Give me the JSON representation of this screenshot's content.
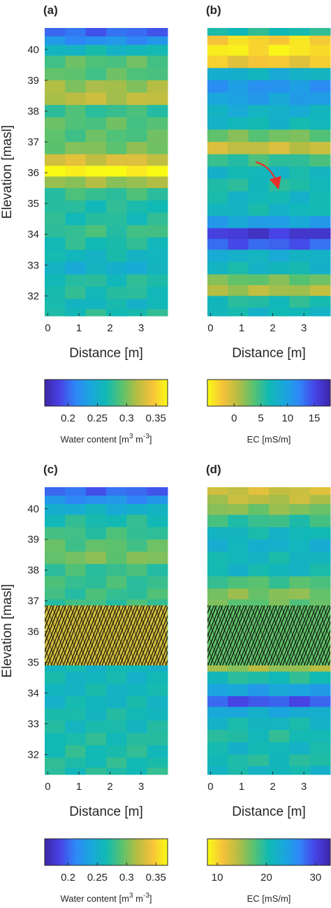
{
  "chart_data": [
    {
      "type": "heatmap",
      "panel_label": "(a)",
      "xlabel": "Distance [m]",
      "ylabel": "Elevation [masl]",
      "x_ticks": [
        "0",
        "1",
        "2",
        "3"
      ],
      "y_ticks": [
        "32",
        "33",
        "34",
        "35",
        "36",
        "37",
        "38",
        "39",
        "40"
      ],
      "xlim": [
        -0.1,
        3.85
      ],
      "ylim": [
        31.35,
        40.7
      ],
      "colormap": "parula",
      "colorbar": {
        "label_main": "Water content [m",
        "label_sup1": "3",
        "label_mid": " m",
        "label_sup2": "-3",
        "label_end": "]",
        "ticks": [
          "0.2",
          "0.25",
          "0.3",
          "0.35"
        ],
        "range": [
          0.16,
          0.37
        ],
        "reversed": false
      },
      "layers": [
        {
          "elev": 40.55,
          "value": 0.2
        },
        {
          "elev": 40.3,
          "value": 0.22
        },
        {
          "elev": 40.0,
          "value": 0.26
        },
        {
          "elev": 39.6,
          "value": 0.29
        },
        {
          "elev": 39.2,
          "value": 0.29
        },
        {
          "elev": 38.8,
          "value": 0.31
        },
        {
          "elev": 38.4,
          "value": 0.32
        },
        {
          "elev": 38.0,
          "value": 0.28
        },
        {
          "elev": 37.6,
          "value": 0.29
        },
        {
          "elev": 37.2,
          "value": 0.29
        },
        {
          "elev": 36.8,
          "value": 0.3
        },
        {
          "elev": 36.4,
          "value": 0.33
        },
        {
          "elev": 36.05,
          "value": 0.37
        },
        {
          "elev": 35.7,
          "value": 0.31
        },
        {
          "elev": 35.3,
          "value": 0.28
        },
        {
          "elev": 34.9,
          "value": 0.27
        },
        {
          "elev": 34.5,
          "value": 0.27
        },
        {
          "elev": 34.1,
          "value": 0.28
        },
        {
          "elev": 33.7,
          "value": 0.27
        },
        {
          "elev": 33.3,
          "value": 0.26
        },
        {
          "elev": 32.9,
          "value": 0.25
        },
        {
          "elev": 32.5,
          "value": 0.27
        },
        {
          "elev": 32.1,
          "value": 0.27
        },
        {
          "elev": 31.7,
          "value": 0.26
        },
        {
          "elev": 31.45,
          "value": 0.27
        }
      ],
      "hatch": null,
      "annotation": null
    },
    {
      "type": "heatmap",
      "panel_label": "(b)",
      "xlabel": "Distance [m]",
      "ylabel": "",
      "x_ticks": [
        "0",
        "1",
        "2",
        "3"
      ],
      "y_ticks": [],
      "xlim": [
        -0.1,
        3.85
      ],
      "ylim": [
        31.35,
        40.7
      ],
      "colormap": "parula_reversed",
      "colorbar": {
        "label_main": "EC [mS/m]",
        "label_sup1": "",
        "label_mid": "",
        "label_sup2": "",
        "label_end": "",
        "ticks": [
          "0",
          "5",
          "10",
          "15"
        ],
        "range": [
          -5,
          18
        ],
        "reversed": true
      },
      "layers": [
        {
          "elev": 40.6,
          "value": 6
        },
        {
          "elev": 40.3,
          "value": -3
        },
        {
          "elev": 40.0,
          "value": -4
        },
        {
          "elev": 39.6,
          "value": -2
        },
        {
          "elev": 39.2,
          "value": 8
        },
        {
          "elev": 38.8,
          "value": 11
        },
        {
          "elev": 38.4,
          "value": 10
        },
        {
          "elev": 38.0,
          "value": 8
        },
        {
          "elev": 37.6,
          "value": 7
        },
        {
          "elev": 37.2,
          "value": 3
        },
        {
          "elev": 36.8,
          "value": 0
        },
        {
          "elev": 36.4,
          "value": 5
        },
        {
          "elev": 36.0,
          "value": 7
        },
        {
          "elev": 35.6,
          "value": 6
        },
        {
          "elev": 35.2,
          "value": 7
        },
        {
          "elev": 34.8,
          "value": 7
        },
        {
          "elev": 34.4,
          "value": 10
        },
        {
          "elev": 34.0,
          "value": 16
        },
        {
          "elev": 33.7,
          "value": 14
        },
        {
          "elev": 33.3,
          "value": 8
        },
        {
          "elev": 32.9,
          "value": 7
        },
        {
          "elev": 32.5,
          "value": 3
        },
        {
          "elev": 32.2,
          "value": 1
        },
        {
          "elev": 31.8,
          "value": 6
        },
        {
          "elev": 31.45,
          "value": 7
        }
      ],
      "hatch": null,
      "annotation": {
        "kind": "arrow",
        "color": "#e8302a",
        "from": [
          1.45,
          36.35
        ],
        "to": [
          2.15,
          35.6
        ]
      }
    },
    {
      "type": "heatmap",
      "panel_label": "(c)",
      "xlabel": "Distance [m]",
      "ylabel": "Elevation [masl]",
      "x_ticks": [
        "0",
        "1",
        "2",
        "3"
      ],
      "y_ticks": [
        "32",
        "33",
        "34",
        "35",
        "36",
        "37",
        "38",
        "39",
        "40"
      ],
      "xlim": [
        -0.1,
        3.85
      ],
      "ylim": [
        31.35,
        40.7
      ],
      "colormap": "parula",
      "colorbar": {
        "label_main": "Water content [m",
        "label_sup1": "3",
        "label_mid": " m",
        "label_sup2": "-3",
        "label_end": "]",
        "ticks": [
          "0.2",
          "0.25",
          "0.3",
          "0.35"
        ],
        "range": [
          0.16,
          0.37
        ],
        "reversed": false
      },
      "layers": [
        {
          "elev": 40.55,
          "value": 0.2
        },
        {
          "elev": 40.3,
          "value": 0.22
        },
        {
          "elev": 40.0,
          "value": 0.25
        },
        {
          "elev": 39.6,
          "value": 0.27
        },
        {
          "elev": 39.2,
          "value": 0.28
        },
        {
          "elev": 38.8,
          "value": 0.29
        },
        {
          "elev": 38.4,
          "value": 0.3
        },
        {
          "elev": 38.0,
          "value": 0.28
        },
        {
          "elev": 37.6,
          "value": 0.28
        },
        {
          "elev": 37.2,
          "value": 0.28
        },
        {
          "elev": 36.9,
          "value": 0.28
        },
        {
          "elev": 34.9,
          "value": 0.26
        },
        {
          "elev": 34.5,
          "value": 0.26
        },
        {
          "elev": 34.1,
          "value": 0.26
        },
        {
          "elev": 33.7,
          "value": 0.26
        },
        {
          "elev": 33.3,
          "value": 0.265
        },
        {
          "elev": 32.9,
          "value": 0.265
        },
        {
          "elev": 32.5,
          "value": 0.27
        },
        {
          "elev": 32.1,
          "value": 0.27
        },
        {
          "elev": 31.7,
          "value": 0.27
        },
        {
          "elev": 31.45,
          "value": 0.27
        }
      ],
      "hatch": {
        "from_elev": 34.9,
        "to_elev": 36.85,
        "under_value": 0.33
      },
      "annotation": null
    },
    {
      "type": "heatmap",
      "panel_label": "(d)",
      "xlabel": "Distance [m]",
      "ylabel": "",
      "x_ticks": [
        "0",
        "1",
        "2",
        "3"
      ],
      "y_ticks": [],
      "xlim": [
        -0.1,
        3.85
      ],
      "ylim": [
        31.35,
        40.7
      ],
      "colormap": "parula_reversed",
      "colorbar": {
        "label_main": "EC [mS/m]",
        "label_sup1": "",
        "label_mid": "",
        "label_sup2": "",
        "label_end": "",
        "ticks": [
          "10",
          "20",
          "30"
        ],
        "range": [
          8,
          33
        ],
        "reversed": true
      },
      "layers": [
        {
          "elev": 40.6,
          "value": 13
        },
        {
          "elev": 40.3,
          "value": 14
        },
        {
          "elev": 40.0,
          "value": 16
        },
        {
          "elev": 39.6,
          "value": 19
        },
        {
          "elev": 39.2,
          "value": 21
        },
        {
          "elev": 38.8,
          "value": 22
        },
        {
          "elev": 38.4,
          "value": 21
        },
        {
          "elev": 38.0,
          "value": 21
        },
        {
          "elev": 37.6,
          "value": 18
        },
        {
          "elev": 37.2,
          "value": 16
        },
        {
          "elev": 36.9,
          "value": 17
        },
        {
          "elev": 34.9,
          "value": 15
        },
        {
          "elev": 34.5,
          "value": 20
        },
        {
          "elev": 34.1,
          "value": 24
        },
        {
          "elev": 33.7,
          "value": 29
        },
        {
          "elev": 33.4,
          "value": 23
        },
        {
          "elev": 33.0,
          "value": 21
        },
        {
          "elev": 32.6,
          "value": 20
        },
        {
          "elev": 32.2,
          "value": 21
        },
        {
          "elev": 31.8,
          "value": 20
        },
        {
          "elev": 31.45,
          "value": 21
        }
      ],
      "hatch": {
        "from_elev": 34.9,
        "to_elev": 36.85,
        "under_value": 17
      },
      "annotation": null
    }
  ]
}
